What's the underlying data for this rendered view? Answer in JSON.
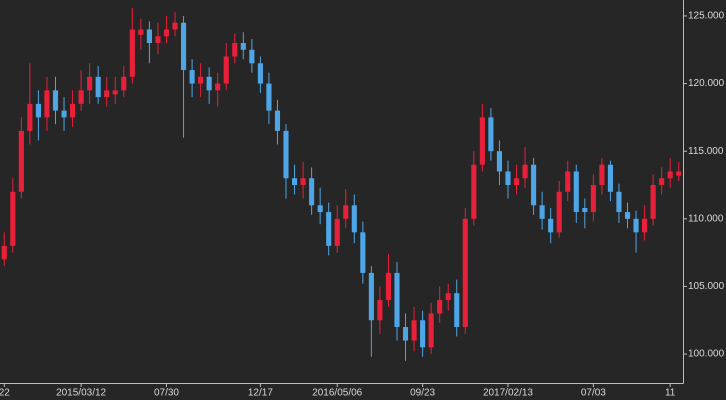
{
  "chart_data": {
    "type": "candlestick",
    "categories": [
      "22",
      null,
      null,
      null,
      null,
      null,
      null,
      null,
      null,
      "2015/03/12",
      null,
      null,
      null,
      null,
      null,
      null,
      null,
      null,
      null,
      "07/30",
      null,
      null,
      null,
      null,
      null,
      null,
      null,
      null,
      null,
      null,
      "12/17",
      null,
      null,
      null,
      null,
      null,
      null,
      null,
      null,
      "2016/05/06",
      null,
      null,
      null,
      null,
      null,
      null,
      null,
      null,
      null,
      "09/23",
      null,
      null,
      null,
      null,
      null,
      null,
      null,
      null,
      null,
      "2017/02/13",
      null,
      null,
      null,
      null,
      null,
      null,
      null,
      null,
      null,
      "07/03",
      null,
      null,
      null,
      null,
      null,
      null,
      null,
      null,
      "11",
      null
    ],
    "open": [
      107,
      108,
      112,
      116.5,
      118.5,
      117.5,
      119.5,
      118,
      117.5,
      118.5,
      119.5,
      120.5,
      119,
      119.2,
      119.5,
      120.5,
      123.6,
      124,
      123,
      123.5,
      124,
      124.5,
      121,
      120,
      120.5,
      119.5,
      120,
      122,
      123,
      122.5,
      121.5,
      120,
      118,
      116.5,
      113,
      112.5,
      113,
      111,
      110.5,
      108,
      110,
      111,
      109,
      106,
      102.5,
      104,
      106,
      102,
      101,
      102.5,
      100.5,
      103,
      104,
      104.5,
      102,
      110,
      114,
      117.5,
      115,
      113.5,
      112.5,
      113,
      114,
      111,
      110,
      109,
      112,
      113.5,
      110.8,
      110.5,
      112.5,
      114,
      112,
      110.5,
      110,
      109,
      110,
      112.5,
      113,
      113.2
    ],
    "high": [
      109,
      113,
      117.5,
      121.5,
      119.5,
      120.5,
      120.5,
      119,
      119.5,
      121,
      121.5,
      121.3,
      120.5,
      120.5,
      121.3,
      125.6,
      124.8,
      124.6,
      124.5,
      125,
      125.3,
      125,
      121.8,
      121.5,
      121.2,
      120.8,
      123,
      123.7,
      123.8,
      123.3,
      122,
      120.8,
      118.8,
      117,
      114,
      114.2,
      113.8,
      112.3,
      111.2,
      111,
      112.2,
      111.8,
      109.8,
      106.5,
      105,
      107.4,
      106.8,
      103,
      103.5,
      103.2,
      103.8,
      105,
      105.2,
      105.5,
      110.8,
      115,
      118.5,
      118.2,
      115.8,
      114.3,
      114,
      115.3,
      114.5,
      112,
      110.8,
      112.8,
      114.3,
      114,
      111.5,
      113.3,
      114.5,
      114.3,
      112.6,
      111.2,
      110.6,
      111,
      113.3,
      113.8,
      114.5,
      114.2
    ],
    "low": [
      106.5,
      107.5,
      111.5,
      115.5,
      115.8,
      116.5,
      117,
      116.5,
      116.8,
      118,
      118.5,
      118.5,
      118.3,
      118.5,
      119,
      120,
      122.5,
      121.5,
      122.2,
      123,
      123.5,
      116,
      119,
      119,
      118.5,
      118.3,
      119.5,
      121.5,
      121.8,
      120.8,
      119.3,
      117,
      115.5,
      111.5,
      111.8,
      111.5,
      110.3,
      109.6,
      107.3,
      107.5,
      109.3,
      108.2,
      105.2,
      99.8,
      101.5,
      103.5,
      101,
      99.5,
      100.2,
      99.8,
      100,
      102.3,
      103.2,
      101.3,
      101.5,
      109.5,
      113.5,
      114.3,
      112.5,
      111.5,
      111.8,
      112.3,
      110.3,
      109.2,
      108.2,
      108.6,
      111.3,
      109.7,
      109.3,
      109.8,
      111.8,
      111.3,
      109.7,
      109.3,
      107.5,
      108.4,
      109.5,
      111.8,
      112.3,
      112.8
    ],
    "close": [
      108,
      112,
      116.5,
      118.5,
      117.5,
      119.5,
      118,
      117.5,
      118.5,
      119.5,
      120.5,
      119,
      119.5,
      119.5,
      120.5,
      124,
      124,
      123,
      123.5,
      124,
      124.5,
      121,
      120,
      120.5,
      119.5,
      120,
      122,
      123,
      122.5,
      121.5,
      120,
      118,
      116.5,
      113,
      112.5,
      113,
      111,
      110.5,
      108,
      110,
      111,
      109,
      106,
      102.5,
      104,
      106,
      102,
      101,
      102.5,
      100.5,
      103,
      104,
      104.5,
      102,
      110,
      114,
      117.5,
      115,
      113.5,
      112.5,
      113,
      114,
      111,
      110,
      109,
      112,
      113.5,
      110.5,
      110.5,
      112.5,
      114,
      112,
      110.5,
      110,
      109,
      110,
      112.5,
      113,
      113.5,
      113.5
    ],
    "up_color": "#e8203a",
    "down_color": "#4ea6e6",
    "ylim": [
      97.86,
      126.18
    ],
    "yticks": [
      {
        "value": 100,
        "label": "100.000"
      },
      {
        "value": 105,
        "label": "105.000"
      },
      {
        "value": 110,
        "label": "110.000"
      },
      {
        "value": 115,
        "label": "115.000"
      },
      {
        "value": 120,
        "label": "120.000"
      },
      {
        "value": 125,
        "label": "125.000"
      }
    ]
  }
}
